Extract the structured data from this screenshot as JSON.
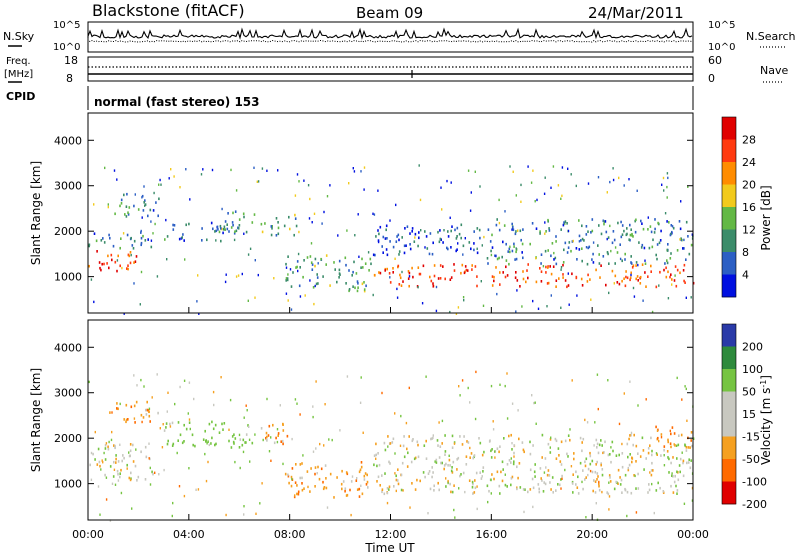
{
  "header": {
    "station": "Blackstone (fitACF)",
    "beam": "Beam 09",
    "date": "24/Mar/2011"
  },
  "panels": {
    "nsky_label": "N.Sky",
    "nsearch_label": "N.Search",
    "nsky_ticks": [
      "10^5",
      "10^0"
    ],
    "freq_label": "Freq.",
    "freq_unit": "[MHz]",
    "freq_ticks": [
      "18",
      "8"
    ],
    "nave_label": "Nave",
    "nave_ticks": [
      "60",
      "0"
    ],
    "cpid_label": "CPID",
    "cpid_value": "normal (fast stereo) 153"
  },
  "chart_data": [
    {
      "type": "heatmap",
      "name": "Power",
      "xlabel": "Time UT",
      "ylabel": "Slant Range [km]",
      "colorbar_label": "Power [dB]",
      "xlim": [
        "00:00",
        "24:00"
      ],
      "ylim": [
        200,
        4600
      ],
      "y_ticks": [
        1000,
        2000,
        3000,
        4000
      ],
      "x_ticks": [
        "00:00",
        "04:00",
        "08:00",
        "12:00",
        "16:00",
        "20:00",
        "00:00"
      ],
      "colorbar_ticks": [
        4,
        8,
        12,
        16,
        20,
        24,
        28
      ],
      "colorbar_colors": [
        "#0010e0",
        "#2c5fc4",
        "#3b8c6a",
        "#63b845",
        "#f2ca1c",
        "#ff8c00",
        "#ff3a10",
        "#e00000"
      ],
      "regions": [
        {
          "t0": 0.0,
          "t1": 1.9,
          "r0": 1100,
          "r1": 1650,
          "level": 26
        },
        {
          "t0": 0.0,
          "t1": 2.6,
          "r0": 1600,
          "r1": 2000,
          "level": 8
        },
        {
          "t0": 0.8,
          "t1": 2.8,
          "r0": 2350,
          "r1": 2850,
          "level": 9
        },
        {
          "t0": 3.0,
          "t1": 6.0,
          "r0": 1800,
          "r1": 2250,
          "level": 7
        },
        {
          "t0": 5.1,
          "t1": 6.6,
          "r0": 2000,
          "r1": 2500,
          "level": 11
        },
        {
          "t0": 6.8,
          "t1": 8.3,
          "r0": 1900,
          "r1": 2400,
          "level": 11
        },
        {
          "t0": 7.8,
          "t1": 11.2,
          "r0": 700,
          "r1": 1500,
          "level": 11
        },
        {
          "t0": 11.3,
          "t1": 15.8,
          "r0": 1500,
          "r1": 2200,
          "level": 6
        },
        {
          "t0": 11.3,
          "t1": 24.0,
          "r0": 800,
          "r1": 1300,
          "level": 26
        },
        {
          "t0": 15.8,
          "t1": 24.0,
          "r0": 1300,
          "r1": 2300,
          "level": 9
        }
      ]
    },
    {
      "type": "heatmap",
      "name": "Velocity",
      "xlabel": "Time UT",
      "ylabel": "Slant Range [km]",
      "colorbar_label": "Velocity [m s^-1]",
      "xlim": [
        "00:00",
        "24:00"
      ],
      "ylim": [
        200,
        4600
      ],
      "y_ticks": [
        1000,
        2000,
        3000,
        4000
      ],
      "x_ticks": [
        "00:00",
        "04:00",
        "08:00",
        "12:00",
        "16:00",
        "20:00",
        "00:00"
      ],
      "colorbar_ticks": [
        200,
        100,
        50,
        15,
        -15,
        -50,
        -100,
        -200
      ],
      "colorbar_colors": [
        "#2a3aa8",
        "#2e8a3c",
        "#76c442",
        "#c8c8c0",
        "#c8c8c0",
        "#f5a020",
        "#ff6a00",
        "#e00000"
      ],
      "regions": [
        {
          "t0": 0.0,
          "t1": 2.6,
          "r0": 1100,
          "r1": 1900,
          "level": 0
        },
        {
          "t0": 0.8,
          "t1": 2.8,
          "r0": 2350,
          "r1": 2850,
          "level": -40
        },
        {
          "t0": 3.0,
          "t1": 6.5,
          "r0": 1800,
          "r1": 2400,
          "level": 40
        },
        {
          "t0": 6.8,
          "t1": 8.3,
          "r0": 1900,
          "r1": 2400,
          "level": -40
        },
        {
          "t0": 7.8,
          "t1": 11.2,
          "r0": 700,
          "r1": 1500,
          "level": -40
        },
        {
          "t0": 11.3,
          "t1": 24.0,
          "r0": 800,
          "r1": 2100,
          "level": 0
        },
        {
          "t0": 22.5,
          "t1": 24.0,
          "r0": 1800,
          "r1": 2300,
          "level": -60
        }
      ]
    }
  ]
}
